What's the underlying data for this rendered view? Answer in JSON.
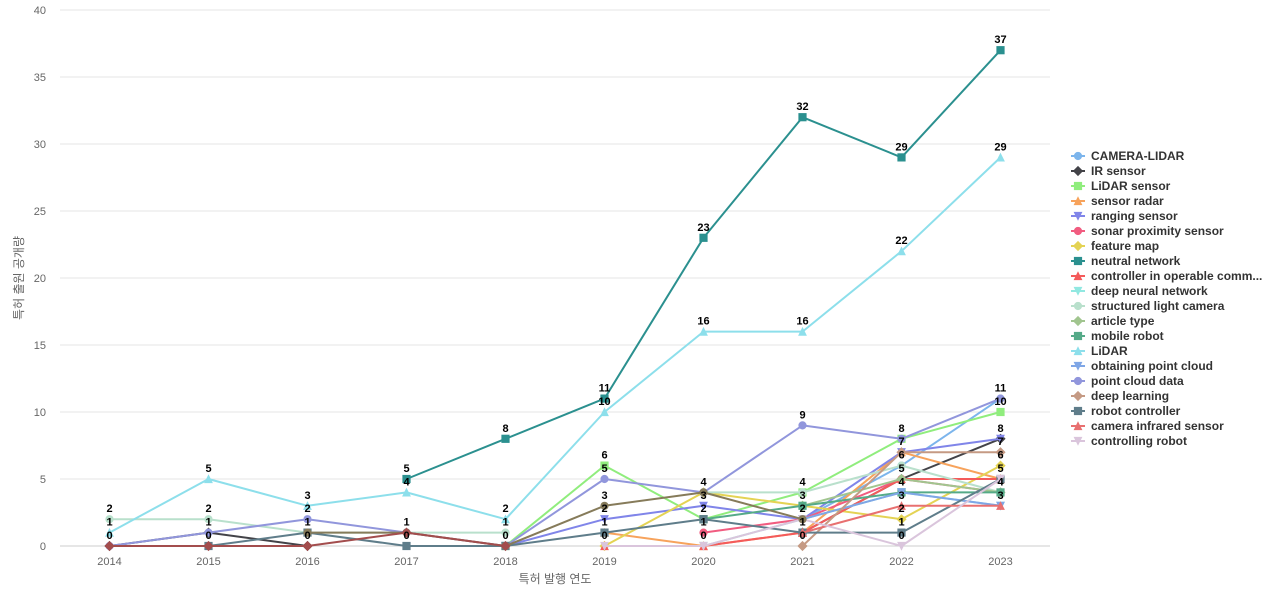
{
  "chart_data": {
    "type": "line",
    "title": "",
    "xlabel": "특허 발행 연도",
    "ylabel": "특허 출원 공개량",
    "ylim": [
      0,
      40
    ],
    "yticks": [
      0,
      5,
      10,
      15,
      20,
      25,
      30,
      35,
      40
    ],
    "grid": true,
    "legend_position": "right",
    "categories": [
      "2014",
      "2015",
      "2016",
      "2017",
      "2018",
      "2019",
      "2020",
      "2021",
      "2022",
      "2023"
    ],
    "series": [
      {
        "name": "CAMERA-LIDAR",
        "color": "#7cb5ec",
        "marker": "circle",
        "values": [
          null,
          null,
          null,
          null,
          null,
          null,
          null,
          2,
          6,
          11
        ]
      },
      {
        "name": "IR sensor",
        "color": "#434348",
        "marker": "diamond",
        "values": [
          0,
          1,
          0,
          null,
          null,
          null,
          null,
          1,
          5,
          8
        ]
      },
      {
        "name": "LiDAR sensor",
        "color": "#90ed7d",
        "marker": "square",
        "values": [
          null,
          null,
          null,
          null,
          0,
          6,
          2,
          4,
          8,
          10
        ]
      },
      {
        "name": "sensor radar",
        "color": "#f7a35c",
        "marker": "triangle",
        "values": [
          null,
          null,
          null,
          null,
          null,
          1,
          0,
          1,
          7,
          5
        ]
      },
      {
        "name": "ranging sensor",
        "color": "#8085e9",
        "marker": "triangle-down",
        "values": [
          null,
          null,
          null,
          null,
          0,
          2,
          3,
          2,
          7,
          8
        ]
      },
      {
        "name": "sonar proximity sensor",
        "color": "#f15c80",
        "marker": "circle",
        "values": [
          null,
          null,
          null,
          null,
          null,
          null,
          1,
          2,
          5,
          4
        ]
      },
      {
        "name": "feature map",
        "color": "#e4d354",
        "marker": "diamond",
        "values": [
          null,
          null,
          null,
          null,
          null,
          0,
          4,
          3,
          2,
          6
        ]
      },
      {
        "name": "neutral network",
        "color": "#2b908f",
        "marker": "square",
        "values": [
          null,
          null,
          null,
          5,
          8,
          11,
          23,
          32,
          29,
          37
        ]
      },
      {
        "name": "controller in operable comm...",
        "color": "#f45b5b",
        "marker": "triangle",
        "values": [
          null,
          null,
          null,
          null,
          null,
          0,
          0,
          1,
          5,
          5
        ]
      },
      {
        "name": "deep neural network",
        "color": "#91e8e1",
        "marker": "triangle-down",
        "values": [
          null,
          null,
          null,
          null,
          null,
          null,
          0,
          2,
          4,
          3
        ]
      },
      {
        "name": "structured light camera",
        "color": "#b9e0cc",
        "marker": "circle",
        "values": [
          2,
          2,
          1,
          1,
          1,
          null,
          4,
          4,
          6,
          4
        ]
      },
      {
        "name": "article type",
        "color": "#a1c58f",
        "marker": "diamond",
        "values": [
          null,
          null,
          null,
          null,
          null,
          null,
          null,
          3,
          5,
          4
        ]
      },
      {
        "name": "mobile robot",
        "color": "#55aa88",
        "marker": "square",
        "values": [
          null,
          null,
          null,
          null,
          null,
          null,
          2,
          3,
          4,
          4
        ]
      },
      {
        "name": "LiDAR",
        "color": "#8ddfeb",
        "marker": "triangle",
        "values": [
          1,
          5,
          3,
          4,
          2,
          10,
          16,
          16,
          22,
          29
        ]
      },
      {
        "name": "obtaining point cloud",
        "color": "#7fa6e6",
        "marker": "triangle-down",
        "values": [
          null,
          null,
          null,
          null,
          null,
          null,
          null,
          2,
          4,
          3
        ]
      },
      {
        "name": "point cloud data",
        "color": "#9196dc",
        "marker": "circle",
        "values": [
          0,
          1,
          2,
          1,
          0,
          5,
          4,
          9,
          8,
          11
        ]
      },
      {
        "name": "deep learning",
        "color": "#c59a84",
        "marker": "diamond",
        "values": [
          null,
          null,
          null,
          null,
          null,
          null,
          null,
          0,
          7,
          7
        ]
      },
      {
        "name": "robot controller",
        "color": "#5f7d8a",
        "marker": "square",
        "values": [
          null,
          0,
          1,
          0,
          0,
          1,
          2,
          1,
          1,
          5
        ]
      },
      {
        "name": "camera infrared sensor",
        "color": "#e87070",
        "marker": "triangle",
        "values": [
          null,
          null,
          null,
          null,
          null,
          null,
          null,
          1,
          3,
          3
        ]
      },
      {
        "name": "controlling robot",
        "color": "#dac5dc",
        "marker": "triangle-down",
        "values": [
          null,
          null,
          null,
          null,
          null,
          0,
          0,
          2,
          0,
          5
        ]
      },
      {
        "name": "",
        "color": "#867b5a",
        "marker": "circle",
        "values": [
          null,
          null,
          1,
          1,
          0,
          3,
          4,
          2,
          null,
          null
        ]
      },
      {
        "name": "",
        "color": "#a34d4d",
        "marker": "diamond",
        "values": [
          0,
          0,
          0,
          1,
          0,
          null,
          null,
          null,
          null,
          null
        ]
      }
    ]
  }
}
